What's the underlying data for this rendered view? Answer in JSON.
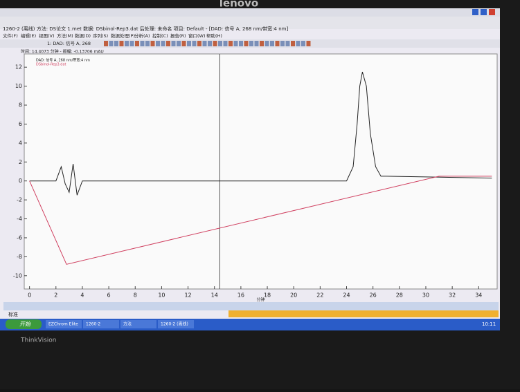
{
  "bezel": {
    "brand_top": "lenovo",
    "brand_bottom": "ThinkVision"
  },
  "window": {
    "title": "1260-2 (离线)   方法: DS论文 1.met   数据: DSbinol-Rep3.dat   后处理: 未命名   项目: Default - [DAD: 信号 A, 268 nm/带宽:4 nm]"
  },
  "menu": [
    "文件(F)",
    "编辑(E)",
    "视图(V)",
    "方法(M)",
    "数据(D)",
    "序列(S)",
    "数据处理(P)",
    "分析(A)",
    "控制(C)",
    "报告(R)",
    "窗口(W)",
    "帮助(H)"
  ],
  "toolbar": {
    "signal": "1: DAD: 信号 A, 268"
  },
  "status": "时间: 14.4073 分钟 - 振幅: -0.13706 mAU",
  "bottom_tab": "标准",
  "taskbar": {
    "start": "开始",
    "items": [
      "EZChrom Elite",
      "1260-2",
      "方法",
      "1260-2 (离线)"
    ],
    "clock": "10:11"
  },
  "chart_data": {
    "type": "line",
    "x_label": "分钟",
    "xlim": [
      -0.4,
      35.4
    ],
    "xticks": [
      0,
      2,
      4,
      6,
      8,
      10,
      12,
      14,
      16,
      18,
      20,
      22,
      24,
      26,
      28,
      30,
      32,
      34
    ],
    "ylim": [
      -11.4,
      13.4
    ],
    "yticks": [
      -10,
      -8,
      -6,
      -4,
      -2,
      0,
      2,
      4,
      6,
      8,
      10,
      12
    ],
    "cursor_x": 14.4073,
    "series": [
      {
        "name": "DAD: 信号 A, 268 nm/带宽:4 nm",
        "color": "#222222",
        "x": [
          0,
          2.0,
          2.4,
          2.7,
          3.0,
          3.3,
          3.6,
          4.0,
          24.0,
          24.5,
          24.8,
          25.0,
          25.2,
          25.5,
          25.8,
          26.2,
          26.6,
          27.0,
          35
        ],
        "values": [
          0,
          0,
          1.5,
          -0.3,
          -1.2,
          1.8,
          -1.5,
          0,
          0,
          1.5,
          6,
          10,
          11.5,
          10,
          5,
          1.5,
          0.5,
          0.5,
          0.3
        ]
      },
      {
        "name": "DSbinol-Rep3.dat",
        "color": "#d04060",
        "x": [
          0,
          2.8,
          31,
          35
        ],
        "values": [
          0,
          -8.8,
          0.5,
          0.5
        ]
      }
    ]
  }
}
